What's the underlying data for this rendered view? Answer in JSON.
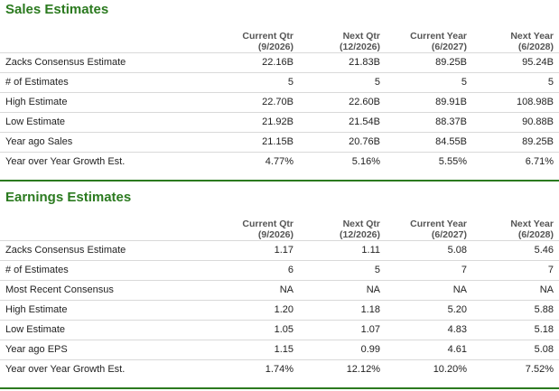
{
  "sales": {
    "title": "Sales Estimates",
    "columns": [
      {
        "line1": "Current Qtr",
        "line2": "(9/2026)"
      },
      {
        "line1": "Next Qtr",
        "line2": "(12/2026)"
      },
      {
        "line1": "Current Year",
        "line2": "(6/2027)"
      },
      {
        "line1": "Next Year",
        "line2": "(6/2028)"
      }
    ],
    "rows": [
      {
        "label": "Zacks Consensus Estimate",
        "values": [
          "22.16B",
          "21.83B",
          "89.25B",
          "95.24B"
        ]
      },
      {
        "label": "# of Estimates",
        "values": [
          "5",
          "5",
          "5",
          "5"
        ]
      },
      {
        "label": "High Estimate",
        "values": [
          "22.70B",
          "22.60B",
          "89.91B",
          "108.98B"
        ]
      },
      {
        "label": "Low Estimate",
        "values": [
          "21.92B",
          "21.54B",
          "88.37B",
          "90.88B"
        ]
      },
      {
        "label": "Year ago Sales",
        "values": [
          "21.15B",
          "20.76B",
          "84.55B",
          "89.25B"
        ]
      },
      {
        "label": "Year over Year Growth Est.",
        "values": [
          "4.77%",
          "5.16%",
          "5.55%",
          "6.71%"
        ]
      }
    ]
  },
  "earnings": {
    "title": "Earnings Estimates",
    "columns": [
      {
        "line1": "Current Qtr",
        "line2": "(9/2026)"
      },
      {
        "line1": "Next Qtr",
        "line2": "(12/2026)"
      },
      {
        "line1": "Current Year",
        "line2": "(6/2027)"
      },
      {
        "line1": "Next Year",
        "line2": "(6/2028)"
      }
    ],
    "rows": [
      {
        "label": "Zacks Consensus Estimate",
        "values": [
          "1.17",
          "1.11",
          "5.08",
          "5.46"
        ]
      },
      {
        "label": "# of Estimates",
        "values": [
          "6",
          "5",
          "7",
          "7"
        ]
      },
      {
        "label": "Most Recent Consensus",
        "values": [
          "NA",
          "NA",
          "NA",
          "NA"
        ]
      },
      {
        "label": "High Estimate",
        "values": [
          "1.20",
          "1.18",
          "5.20",
          "5.88"
        ]
      },
      {
        "label": "Low Estimate",
        "values": [
          "1.05",
          "1.07",
          "4.83",
          "5.18"
        ]
      },
      {
        "label": "Year ago EPS",
        "values": [
          "1.15",
          "0.99",
          "4.61",
          "5.08"
        ]
      },
      {
        "label": "Year over Year Growth Est.",
        "values": [
          "1.74%",
          "12.12%",
          "10.20%",
          "7.52%"
        ]
      }
    ]
  },
  "colors": {
    "accent": "#2b7a1f",
    "header_text": "#555555",
    "divider": "#d9d9d9"
  }
}
